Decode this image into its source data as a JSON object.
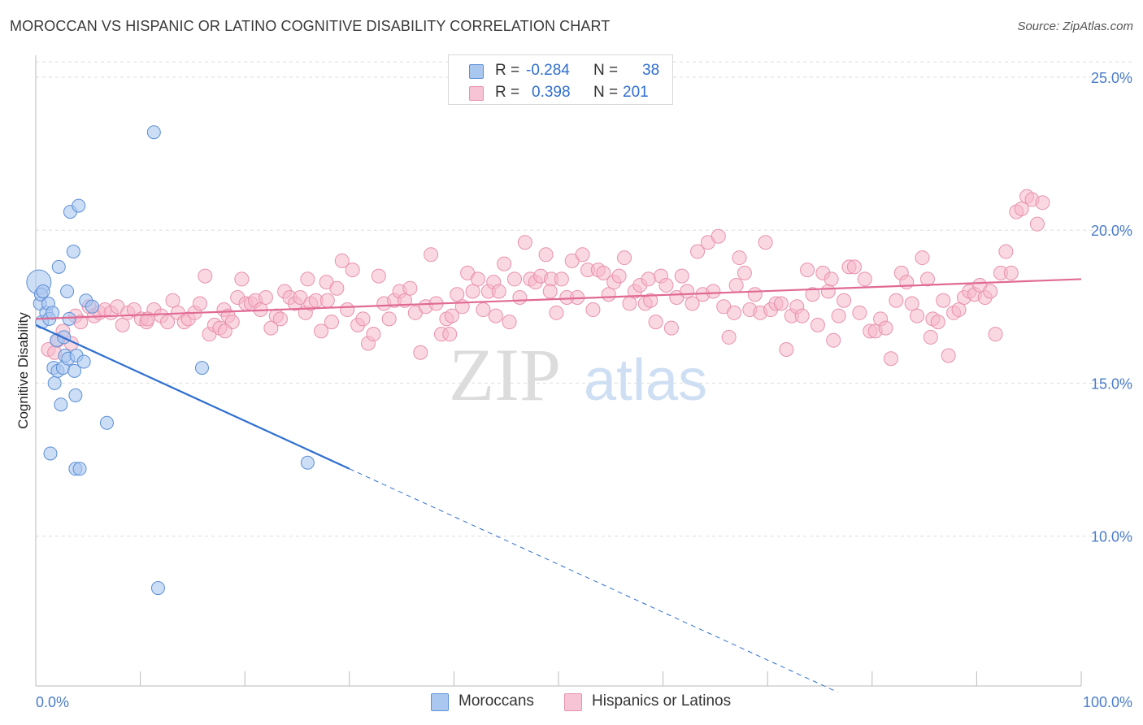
{
  "header": {
    "title": "MOROCCAN VS HISPANIC OR LATINO COGNITIVE DISABILITY CORRELATION CHART",
    "source": "Source: ZipAtlas.com"
  },
  "watermark": {
    "zip": "ZIP",
    "atlas": "atlas"
  },
  "legend": {
    "moroccan": {
      "r_label": "R =",
      "r_value": "-0.284",
      "n_label": "N =",
      "n_value": "38"
    },
    "hispanic": {
      "r_label": "R =",
      "r_value": "0.398",
      "n_label": "N =",
      "n_value": "201"
    }
  },
  "colors": {
    "moroccan_fill": "#aac7f0",
    "moroccan_stroke": "#5b8fd6",
    "moroccan_line": "#2f6fd0",
    "hispanic_fill": "#f6b8cb",
    "hispanic_stroke": "#e891ad",
    "hispanic_line": "#e06a94",
    "tick_label": "#4a7cc9"
  },
  "chart_data": {
    "type": "scatter",
    "title": "MOROCCAN VS HISPANIC OR LATINO COGNITIVE DISABILITY CORRELATION CHART",
    "xlabel": "",
    "ylabel": "Cognitive Disability",
    "xlim": [
      0,
      100
    ],
    "ylim": [
      5,
      26
    ],
    "x_tick_labels": [
      "0.0%",
      "100.0%"
    ],
    "y_ticks": [
      10,
      15,
      20,
      25
    ],
    "y_tick_labels": [
      "10.0%",
      "15.0%",
      "20.0%",
      "25.0%"
    ],
    "grid": "horizontal-dashed",
    "legend_position": "top-center",
    "series": [
      {
        "name": "Moroccans",
        "r": -0.284,
        "n": 38,
        "trend": {
          "x_start": 0.0,
          "y_start": 16.9,
          "x_solid_end": 30.0,
          "y_solid_end": 12.2,
          "x_end": 76.7,
          "y_end": 4.9
        },
        "points": [
          [
            0.3,
            18.3,
            14
          ],
          [
            0.4,
            17.6,
            7
          ],
          [
            0.5,
            17.9,
            7
          ],
          [
            0.6,
            17.0,
            7
          ],
          [
            0.7,
            18.0,
            7
          ],
          [
            1.0,
            17.3,
            7
          ],
          [
            1.2,
            17.6,
            7
          ],
          [
            1.3,
            17.1,
            7
          ],
          [
            1.6,
            17.3,
            7
          ],
          [
            1.4,
            12.7,
            7
          ],
          [
            1.7,
            15.5,
            7
          ],
          [
            1.8,
            15.0,
            7
          ],
          [
            2.0,
            16.4,
            7
          ],
          [
            2.1,
            15.4,
            7
          ],
          [
            2.2,
            18.8,
            7
          ],
          [
            2.4,
            14.3,
            7
          ],
          [
            2.6,
            15.5,
            7
          ],
          [
            2.7,
            16.5,
            7
          ],
          [
            2.8,
            15.9,
            7
          ],
          [
            3.0,
            18.0,
            7
          ],
          [
            3.1,
            15.8,
            7
          ],
          [
            3.2,
            17.1,
            7
          ],
          [
            3.3,
            20.6,
            7
          ],
          [
            3.6,
            19.3,
            7
          ],
          [
            3.7,
            15.4,
            7
          ],
          [
            3.8,
            14.6,
            7
          ],
          [
            3.9,
            15.9,
            7
          ],
          [
            3.8,
            12.2,
            7
          ],
          [
            4.1,
            20.8,
            7
          ],
          [
            4.2,
            12.2,
            7
          ],
          [
            4.6,
            15.7,
            7
          ],
          [
            4.8,
            17.7,
            7
          ],
          [
            5.4,
            17.5,
            7
          ],
          [
            6.8,
            13.7,
            7
          ],
          [
            11.3,
            23.2,
            7
          ],
          [
            11.7,
            8.3,
            7
          ],
          [
            15.9,
            15.5,
            7
          ],
          [
            26.0,
            12.4,
            7
          ]
        ]
      },
      {
        "name": "Hispanics or Latinos",
        "r": 0.398,
        "n": 201,
        "trend": {
          "x_start": 0.0,
          "y_start": 17.1,
          "x_end": 100.0,
          "y_end": 18.4
        },
        "points": [
          [
            1.2,
            16.1
          ],
          [
            1.8,
            16.0
          ],
          [
            2.1,
            16.4
          ],
          [
            2.6,
            16.7
          ],
          [
            3.4,
            16.3
          ],
          [
            3.8,
            17.2
          ],
          [
            4.3,
            17.0
          ],
          [
            5.1,
            17.5
          ],
          [
            5.6,
            17.2
          ],
          [
            6.1,
            17.3
          ],
          [
            6.6,
            17.4
          ],
          [
            7.2,
            17.3
          ],
          [
            7.8,
            17.5
          ],
          [
            8.3,
            16.9
          ],
          [
            8.8,
            17.3
          ],
          [
            9.4,
            17.4
          ],
          [
            10.1,
            17.1
          ],
          [
            10.6,
            17.0
          ],
          [
            11.3,
            17.4
          ],
          [
            12.0,
            17.2
          ],
          [
            12.6,
            17.0
          ],
          [
            13.1,
            17.7
          ],
          [
            13.6,
            17.3
          ],
          [
            14.2,
            17.0
          ],
          [
            14.6,
            17.1
          ],
          [
            15.2,
            17.3
          ],
          [
            15.7,
            17.6
          ],
          [
            16.2,
            18.5
          ],
          [
            16.6,
            16.6
          ],
          [
            17.1,
            16.9
          ],
          [
            17.6,
            16.8
          ],
          [
            18.0,
            17.4
          ],
          [
            18.4,
            17.2
          ],
          [
            18.8,
            17.0
          ],
          [
            19.3,
            17.8
          ],
          [
            19.7,
            18.4
          ],
          [
            20.1,
            17.6
          ],
          [
            20.6,
            17.6
          ],
          [
            21.0,
            17.7
          ],
          [
            21.5,
            17.4
          ],
          [
            22.0,
            17.8
          ],
          [
            22.5,
            16.8
          ],
          [
            23.0,
            17.2
          ],
          [
            23.4,
            17.1
          ],
          [
            23.8,
            18.0
          ],
          [
            24.3,
            17.8
          ],
          [
            24.8,
            17.6
          ],
          [
            25.3,
            17.8
          ],
          [
            25.8,
            17.3
          ],
          [
            26.3,
            17.6
          ],
          [
            26.8,
            17.7
          ],
          [
            27.3,
            16.7
          ],
          [
            27.8,
            18.3
          ],
          [
            28.3,
            17.0
          ],
          [
            28.8,
            18.1
          ],
          [
            29.3,
            19.0
          ],
          [
            29.8,
            17.4
          ],
          [
            30.3,
            18.7
          ],
          [
            30.8,
            16.9
          ],
          [
            31.3,
            17.1
          ],
          [
            31.8,
            16.3
          ],
          [
            32.3,
            16.6
          ],
          [
            32.8,
            18.5
          ],
          [
            33.3,
            17.6
          ],
          [
            33.8,
            17.1
          ],
          [
            34.3,
            17.7
          ],
          [
            34.8,
            18.0
          ],
          [
            35.3,
            17.7
          ],
          [
            35.8,
            18.1
          ],
          [
            36.3,
            17.3
          ],
          [
            36.8,
            16.0
          ],
          [
            37.3,
            17.5
          ],
          [
            37.8,
            19.2
          ],
          [
            38.3,
            17.6
          ],
          [
            38.8,
            16.6
          ],
          [
            39.3,
            17.1
          ],
          [
            39.8,
            17.2
          ],
          [
            40.3,
            17.9
          ],
          [
            40.8,
            17.5
          ],
          [
            41.3,
            18.6
          ],
          [
            41.8,
            18.0
          ],
          [
            42.3,
            18.4
          ],
          [
            42.8,
            17.4
          ],
          [
            43.3,
            18.0
          ],
          [
            43.8,
            18.3
          ],
          [
            44.3,
            18.0
          ],
          [
            44.8,
            18.9
          ],
          [
            45.3,
            17.0
          ],
          [
            45.8,
            18.4
          ],
          [
            46.3,
            17.8
          ],
          [
            46.8,
            19.6
          ],
          [
            47.3,
            18.4
          ],
          [
            47.8,
            18.3
          ],
          [
            48.3,
            18.5
          ],
          [
            48.8,
            19.2
          ],
          [
            49.3,
            18.4
          ],
          [
            49.8,
            17.3
          ],
          [
            50.3,
            18.4
          ],
          [
            50.8,
            17.8
          ],
          [
            51.3,
            19.0
          ],
          [
            51.8,
            17.8
          ],
          [
            52.3,
            19.2
          ],
          [
            52.8,
            18.7
          ],
          [
            53.3,
            17.4
          ],
          [
            53.8,
            18.7
          ],
          [
            54.3,
            18.6
          ],
          [
            54.8,
            17.9
          ],
          [
            55.3,
            18.3
          ],
          [
            55.8,
            18.5
          ],
          [
            56.3,
            19.1
          ],
          [
            56.8,
            17.6
          ],
          [
            57.3,
            18.0
          ],
          [
            57.8,
            18.2
          ],
          [
            58.3,
            17.6
          ],
          [
            58.8,
            17.7
          ],
          [
            59.3,
            17.0
          ],
          [
            59.8,
            18.5
          ],
          [
            60.3,
            18.2
          ],
          [
            60.8,
            16.8
          ],
          [
            61.3,
            17.8
          ],
          [
            61.8,
            18.5
          ],
          [
            62.3,
            18.0
          ],
          [
            62.8,
            17.6
          ],
          [
            63.3,
            19.3
          ],
          [
            63.8,
            17.9
          ],
          [
            64.3,
            19.6
          ],
          [
            64.8,
            18.0
          ],
          [
            65.3,
            19.8
          ],
          [
            65.8,
            17.5
          ],
          [
            66.3,
            16.5
          ],
          [
            66.8,
            17.3
          ],
          [
            67.3,
            19.1
          ],
          [
            67.8,
            18.6
          ],
          [
            68.3,
            17.4
          ],
          [
            68.8,
            17.9
          ],
          [
            69.3,
            17.3
          ],
          [
            69.8,
            19.6
          ],
          [
            70.3,
            17.4
          ],
          [
            70.8,
            17.6
          ],
          [
            71.3,
            17.6
          ],
          [
            71.8,
            16.1
          ],
          [
            72.3,
            17.2
          ],
          [
            72.8,
            17.5
          ],
          [
            73.3,
            17.2
          ],
          [
            73.8,
            18.7
          ],
          [
            74.3,
            17.9
          ],
          [
            74.8,
            16.9
          ],
          [
            75.3,
            18.6
          ],
          [
            75.8,
            18.0
          ],
          [
            76.3,
            16.4
          ],
          [
            76.8,
            17.2
          ],
          [
            77.3,
            17.7
          ],
          [
            77.8,
            18.8
          ],
          [
            78.3,
            18.8
          ],
          [
            78.8,
            17.3
          ],
          [
            79.3,
            18.4
          ],
          [
            79.8,
            16.7
          ],
          [
            80.3,
            16.7
          ],
          [
            80.8,
            17.1
          ],
          [
            81.3,
            16.8
          ],
          [
            81.8,
            15.8
          ],
          [
            82.3,
            17.7
          ],
          [
            82.8,
            18.6
          ],
          [
            83.3,
            18.3
          ],
          [
            83.8,
            17.6
          ],
          [
            84.3,
            17.2
          ],
          [
            84.8,
            19.1
          ],
          [
            85.3,
            18.4
          ],
          [
            85.8,
            17.1
          ],
          [
            86.3,
            17.0
          ],
          [
            86.8,
            17.7
          ],
          [
            87.3,
            15.9
          ],
          [
            87.8,
            17.3
          ],
          [
            88.3,
            17.4
          ],
          [
            88.8,
            17.8
          ],
          [
            89.3,
            18.0
          ],
          [
            89.8,
            17.9
          ],
          [
            90.3,
            18.2
          ],
          [
            90.8,
            17.8
          ],
          [
            91.3,
            18.0
          ],
          [
            91.8,
            16.6
          ],
          [
            92.3,
            18.6
          ],
          [
            92.8,
            19.3
          ],
          [
            93.3,
            18.6
          ],
          [
            93.8,
            20.6
          ],
          [
            94.3,
            20.7
          ],
          [
            94.8,
            21.1
          ],
          [
            95.3,
            21.0
          ],
          [
            95.8,
            20.2
          ],
          [
            96.3,
            20.9
          ],
          [
            10.7,
            17.1
          ],
          [
            18.1,
            16.7
          ],
          [
            27.9,
            17.7
          ],
          [
            39.6,
            16.6
          ],
          [
            49.2,
            18.0
          ],
          [
            58.6,
            18.4
          ],
          [
            67.0,
            18.2
          ],
          [
            76.1,
            18.4
          ],
          [
            85.6,
            16.5
          ],
          [
            26.0,
            18.4
          ],
          [
            44.0,
            17.2
          ]
        ]
      }
    ]
  },
  "bottom_legend": {
    "moroccans": "Moroccans",
    "hispanics": "Hispanics or Latinos"
  }
}
